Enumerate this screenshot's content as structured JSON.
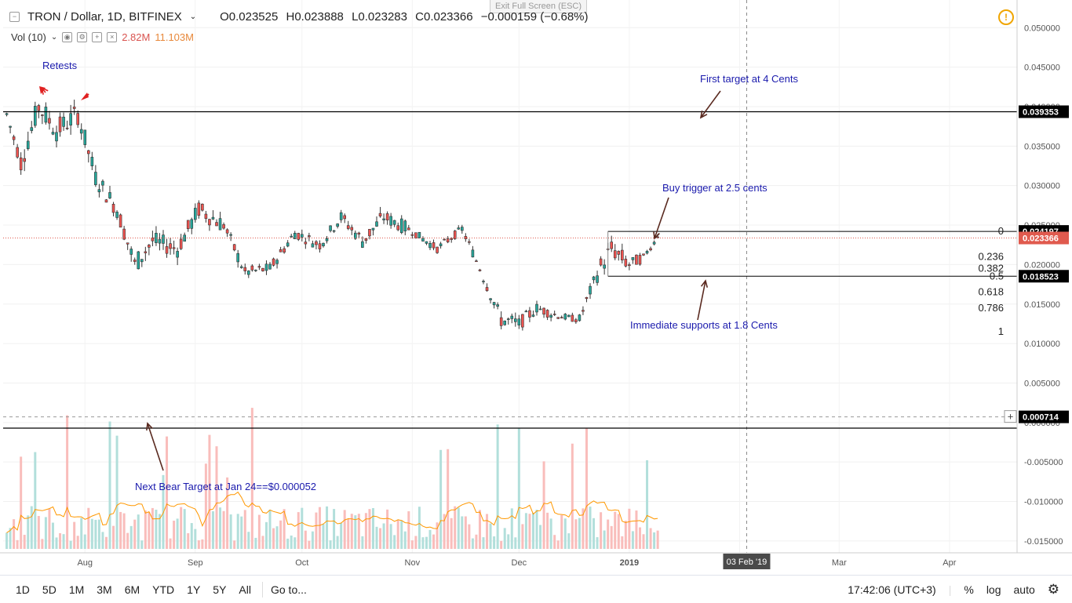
{
  "header": {
    "symbol": "TRON / Dollar, 1D, BITFINEX",
    "open": "O0.023525",
    "high": "H0.023888",
    "low": "L0.023283",
    "close": "C0.023366",
    "change": "−0.000159 (−0.68%)"
  },
  "volume_legend": {
    "label": "Vol (10)",
    "vol": "2.82M",
    "ma": "11.103M"
  },
  "exit_full_screen": "Exit Full Screen (ESC)",
  "price_axis": {
    "ticks": [
      "0.050000",
      "0.045000",
      "0.040000",
      "0.035000",
      "0.030000",
      "0.025000",
      "0.020000",
      "0.015000",
      "0.010000",
      "0.005000",
      "0.000000",
      "-0.005000",
      "-0.010000",
      "-0.015000"
    ]
  },
  "price_labels": [
    {
      "value": "0.039353",
      "bg": "#000000",
      "fg": "#ffffff"
    },
    {
      "value": "0.024197",
      "bg": "#000000",
      "fg": "#ffffff"
    },
    {
      "value": "0.023366",
      "bg": "#e05a4e",
      "fg": "#ffffff"
    },
    {
      "value": "0.018523",
      "bg": "#000000",
      "fg": "#ffffff"
    },
    {
      "value": "0.000714",
      "bg": "#000000",
      "fg": "#ffffff"
    }
  ],
  "time_axis": {
    "labels": [
      "Aug",
      "Sep",
      "Oct",
      "Nov",
      "Dec",
      "2019",
      "Feb",
      "Mar",
      "Apr"
    ],
    "crosshair_date": "03 Feb '19"
  },
  "fib_levels": [
    "0",
    "0.236",
    "0.382",
    "0.5",
    "0.618",
    "0.786",
    "1"
  ],
  "annotations": {
    "retests": "Retests",
    "first_target": "First target at 4 Cents",
    "buy_trigger": "Buy trigger at 2.5 cents",
    "supports": "Immediate supports at 1.8 Cents",
    "bear_target": "Next Bear Target at Jan 24==$0.000052"
  },
  "toolbar": {
    "timeframes": [
      "1D",
      "5D",
      "1M",
      "3M",
      "6M",
      "YTD",
      "1Y",
      "5Y",
      "All"
    ],
    "goto": "Go to...",
    "clock": "17:42:06 (UTC+3)",
    "percent": "%",
    "log": "log",
    "auto": "auto"
  },
  "colors": {
    "up": "#26a69a",
    "down": "#ef5350",
    "upVol": "#b2dfdb",
    "downVol": "#f9bdbb",
    "ma": "#ff9800",
    "annot": "#1a1aad"
  },
  "chart_data": {
    "type": "candlestick",
    "series_name": "TRON / Dollar",
    "ylim": [
      -0.0165,
      0.0535
    ],
    "x_start": "2018-07-09",
    "x_end": "2019-04-20",
    "horizontal_levels": [
      0.039353,
      0.024197,
      0.018523,
      0.000714
    ],
    "last_close": 0.023366,
    "ohlc_points": [
      {
        "date": "2018-07-10",
        "o": 0.0385,
        "h": 0.0395,
        "l": 0.0375,
        "c": 0.039
      },
      {
        "date": "2018-07-14",
        "o": 0.036,
        "h": 0.037,
        "l": 0.032,
        "c": 0.033
      },
      {
        "date": "2018-07-19",
        "o": 0.038,
        "h": 0.042,
        "l": 0.037,
        "c": 0.04
      },
      {
        "date": "2018-07-24",
        "o": 0.036,
        "h": 0.039,
        "l": 0.034,
        "c": 0.037
      },
      {
        "date": "2018-07-30",
        "o": 0.038,
        "h": 0.041,
        "l": 0.036,
        "c": 0.039
      },
      {
        "date": "2018-08-04",
        "o": 0.032,
        "h": 0.034,
        "l": 0.03,
        "c": 0.031
      },
      {
        "date": "2018-08-10",
        "o": 0.029,
        "h": 0.03,
        "l": 0.026,
        "c": 0.027
      },
      {
        "date": "2018-08-15",
        "o": 0.021,
        "h": 0.023,
        "l": 0.019,
        "c": 0.02
      },
      {
        "date": "2018-08-20",
        "o": 0.02,
        "h": 0.024,
        "l": 0.019,
        "c": 0.023
      },
      {
        "date": "2018-08-27",
        "o": 0.021,
        "h": 0.023,
        "l": 0.02,
        "c": 0.022
      },
      {
        "date": "2018-09-02",
        "o": 0.024,
        "h": 0.028,
        "l": 0.023,
        "c": 0.027
      },
      {
        "date": "2018-09-09",
        "o": 0.025,
        "h": 0.027,
        "l": 0.024,
        "c": 0.025
      },
      {
        "date": "2018-09-15",
        "o": 0.02,
        "h": 0.021,
        "l": 0.018,
        "c": 0.019
      },
      {
        "date": "2018-09-22",
        "o": 0.02,
        "h": 0.021,
        "l": 0.019,
        "c": 0.0195
      },
      {
        "date": "2018-09-29",
        "o": 0.025,
        "h": 0.026,
        "l": 0.023,
        "c": 0.024
      },
      {
        "date": "2018-10-06",
        "o": 0.022,
        "h": 0.023,
        "l": 0.021,
        "c": 0.0225
      },
      {
        "date": "2018-10-12",
        "o": 0.027,
        "h": 0.028,
        "l": 0.025,
        "c": 0.026
      },
      {
        "date": "2018-10-18",
        "o": 0.022,
        "h": 0.024,
        "l": 0.021,
        "c": 0.023
      },
      {
        "date": "2018-10-24",
        "o": 0.025,
        "h": 0.028,
        "l": 0.024,
        "c": 0.026
      },
      {
        "date": "2018-10-31",
        "o": 0.024,
        "h": 0.025,
        "l": 0.023,
        "c": 0.0245
      },
      {
        "date": "2018-11-08",
        "o": 0.022,
        "h": 0.023,
        "l": 0.0215,
        "c": 0.022
      },
      {
        "date": "2018-11-15",
        "o": 0.024,
        "h": 0.025,
        "l": 0.023,
        "c": 0.0245
      },
      {
        "date": "2018-11-21",
        "o": 0.019,
        "h": 0.02,
        "l": 0.018,
        "c": 0.0185
      },
      {
        "date": "2018-11-26",
        "o": 0.014,
        "h": 0.016,
        "l": 0.012,
        "c": 0.013
      },
      {
        "date": "2018-12-01",
        "o": 0.012,
        "h": 0.014,
        "l": 0.011,
        "c": 0.0125
      },
      {
        "date": "2018-12-06",
        "o": 0.015,
        "h": 0.016,
        "l": 0.0135,
        "c": 0.0145
      },
      {
        "date": "2018-12-12",
        "o": 0.0135,
        "h": 0.0145,
        "l": 0.0125,
        "c": 0.0135
      },
      {
        "date": "2018-12-18",
        "o": 0.013,
        "h": 0.0135,
        "l": 0.0125,
        "c": 0.013
      },
      {
        "date": "2018-12-23",
        "o": 0.018,
        "h": 0.02,
        "l": 0.016,
        "c": 0.019
      },
      {
        "date": "2018-12-27",
        "o": 0.021,
        "h": 0.024,
        "l": 0.019,
        "c": 0.022
      },
      {
        "date": "2019-01-01",
        "o": 0.019,
        "h": 0.021,
        "l": 0.018,
        "c": 0.02
      },
      {
        "date": "2019-01-05",
        "o": 0.021,
        "h": 0.022,
        "l": 0.02,
        "c": 0.021
      },
      {
        "date": "2019-01-09",
        "o": 0.0235,
        "h": 0.0239,
        "l": 0.0233,
        "c": 0.0234
      }
    ],
    "volume_scale_note": "Vol (10) with moving average"
  }
}
